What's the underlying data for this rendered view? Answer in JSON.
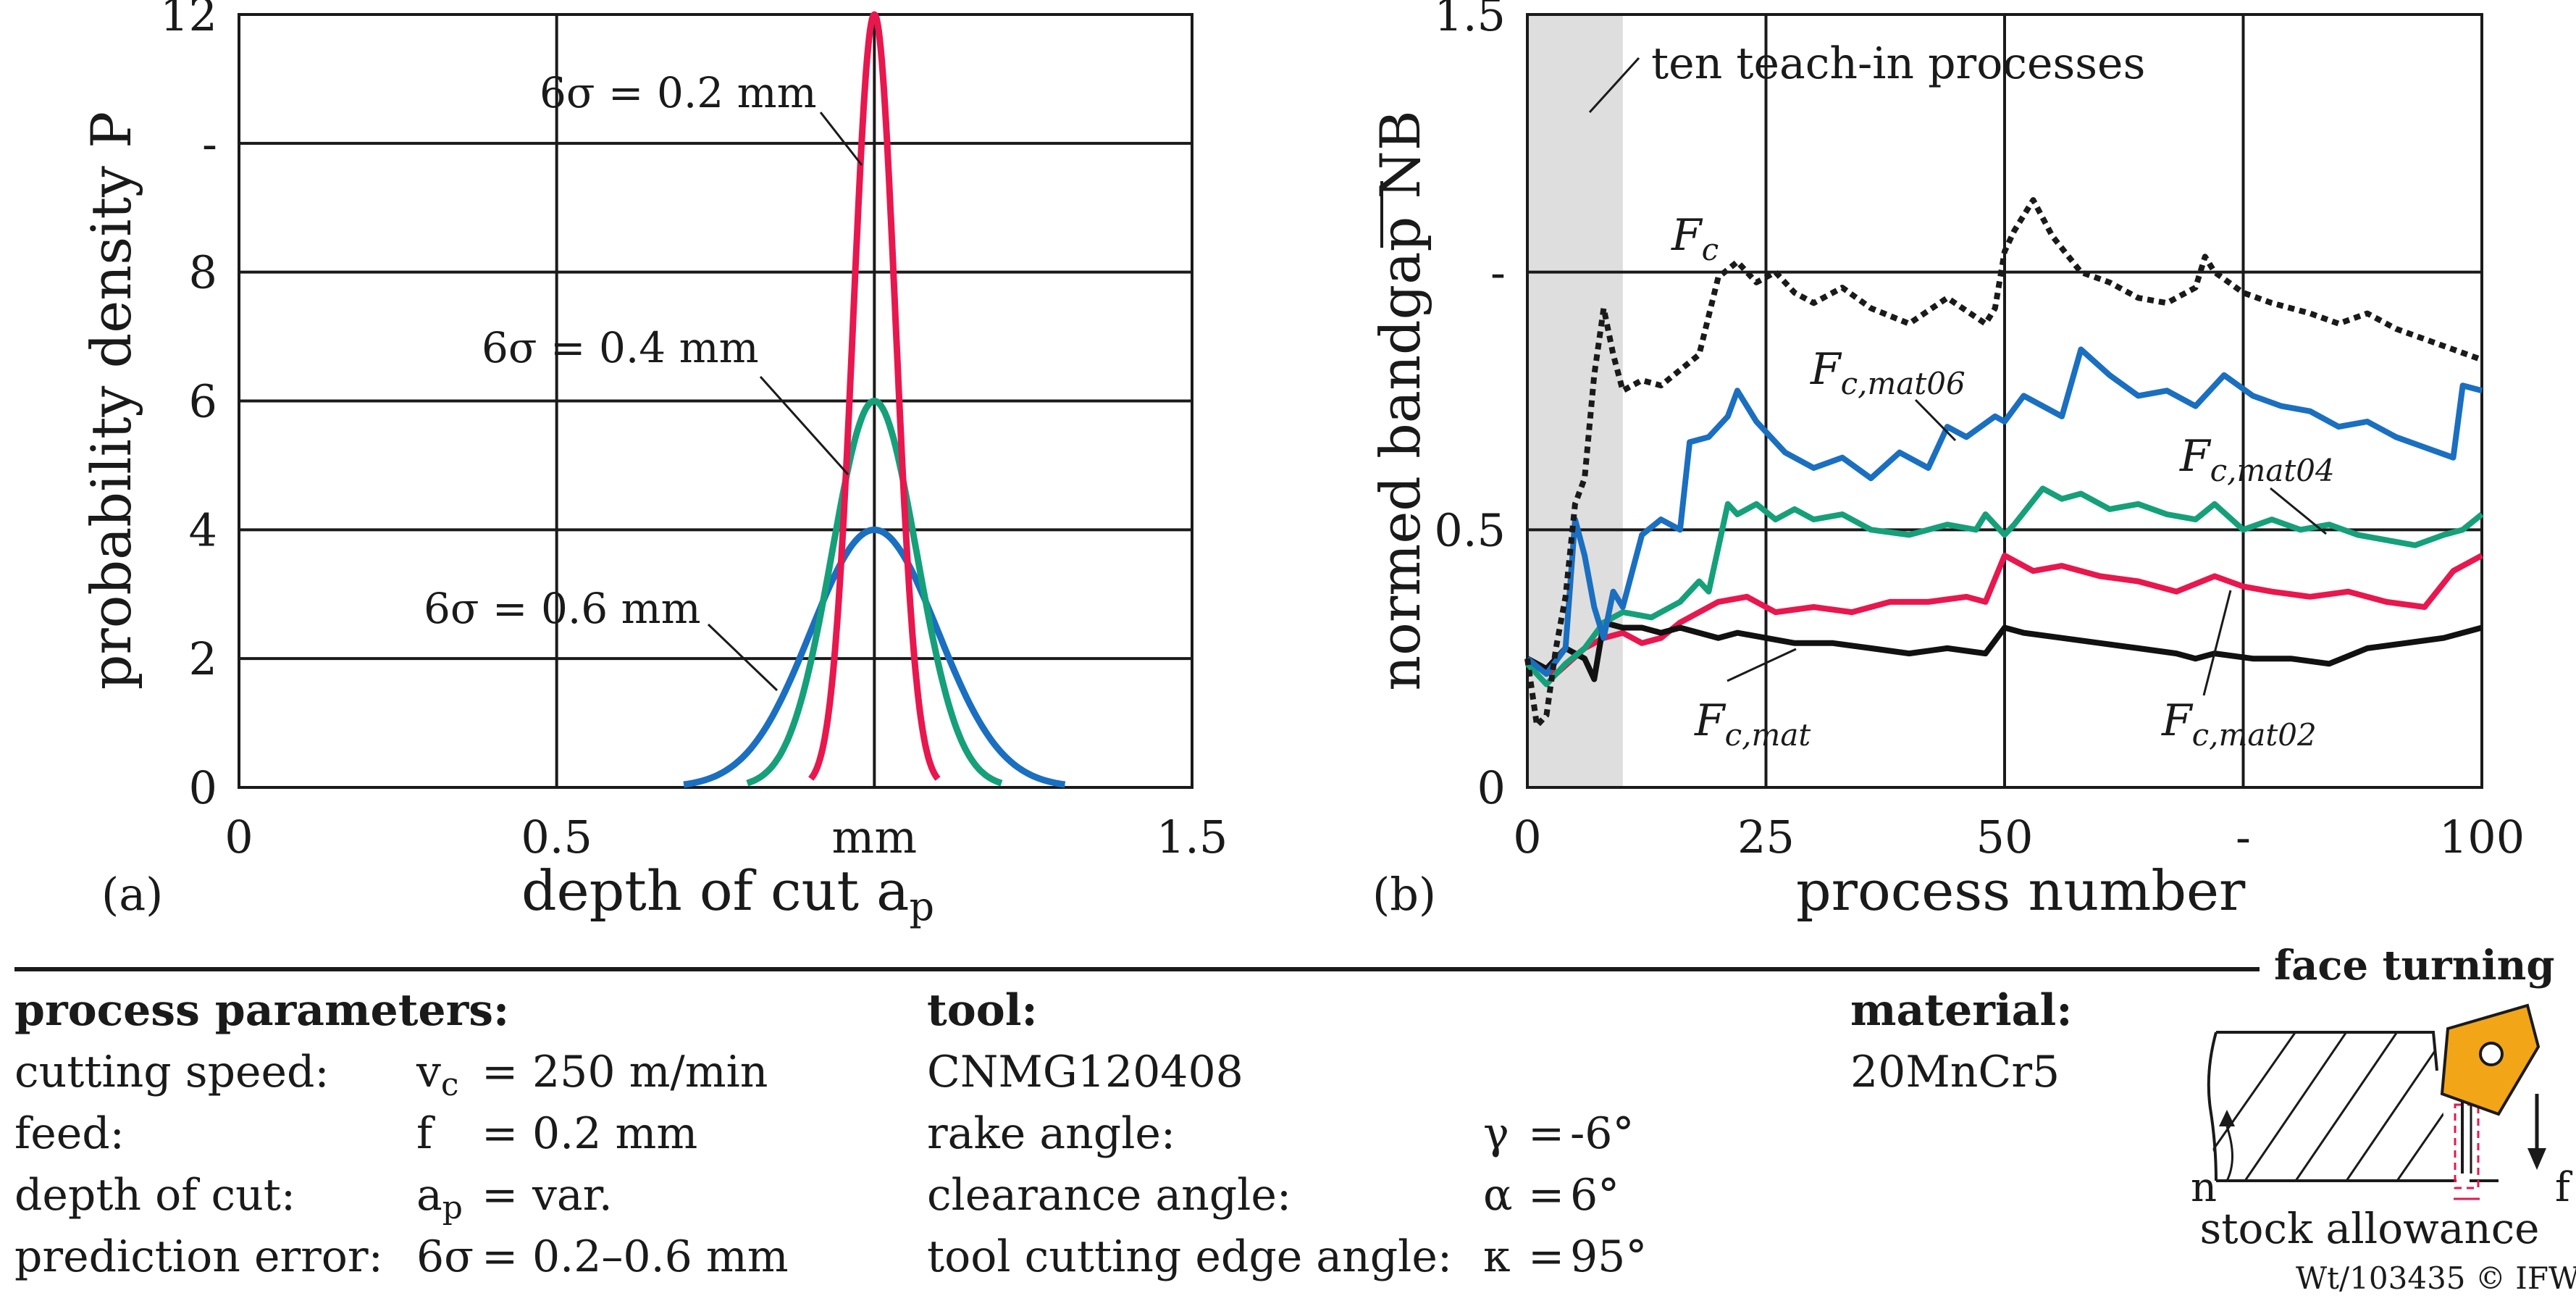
{
  "chart_data": [
    {
      "type": "line",
      "panel_label": "(a)",
      "xlabel": "depth of cut a",
      "xlabel_sub": "p",
      "ylabel": "probability density P",
      "xlim": [
        0,
        1.5
      ],
      "ylim": [
        0,
        12
      ],
      "x_ticks": [
        {
          "value": 0,
          "label": "0"
        },
        {
          "value": 0.5,
          "label": "0.5"
        },
        {
          "value": 1,
          "label": "mm"
        },
        {
          "value": 1.5,
          "label": "1.5"
        }
      ],
      "y_ticks": [
        {
          "value": 0,
          "label": "0"
        },
        {
          "value": 2,
          "label": "2"
        },
        {
          "value": 4,
          "label": "4"
        },
        {
          "value": 6,
          "label": "6"
        },
        {
          "value": 8,
          "label": "8"
        },
        {
          "value": 10,
          "label": "-"
        },
        {
          "value": 12,
          "label": "12"
        }
      ],
      "grid": true,
      "mean": 1.0,
      "series": [
        {
          "name": "6σ = 0.2 mm",
          "sigma": 0.0333,
          "peak": 12,
          "color": "#e8174e"
        },
        {
          "name": "6σ = 0.4 mm",
          "sigma": 0.0667,
          "peak": 6,
          "color": "#16a07a"
        },
        {
          "name": "6σ = 0.6 mm",
          "sigma": 0.1,
          "peak": 4,
          "color": "#1a6fc0"
        }
      ]
    },
    {
      "type": "line",
      "panel_label": "(b)",
      "xlabel": "process number",
      "ylabel": "normed bandgap NB",
      "xlim": [
        0,
        100
      ],
      "ylim": [
        0,
        1.5
      ],
      "x_ticks": [
        {
          "value": 0,
          "label": "0"
        },
        {
          "value": 25,
          "label": "25"
        },
        {
          "value": 50,
          "label": "50"
        },
        {
          "value": 75,
          "label": "-"
        },
        {
          "value": 100,
          "label": "100"
        }
      ],
      "y_ticks": [
        {
          "value": 0,
          "label": "0"
        },
        {
          "value": 0.5,
          "label": "0.5"
        },
        {
          "value": 1.0,
          "label": "-"
        },
        {
          "value": 1.5,
          "label": "1.5"
        }
      ],
      "grid": true,
      "shaded_region": {
        "x": [
          0,
          10
        ],
        "label": "ten teach-in processes"
      },
      "series": [
        {
          "name": "F",
          "sub": "c",
          "style": "dotted",
          "color": "#1a1a1a",
          "x": [
            0,
            1,
            2,
            3,
            4,
            5,
            6,
            7,
            8,
            9,
            10,
            12,
            14,
            16,
            18,
            20,
            22,
            24,
            26,
            28,
            30,
            33,
            36,
            40,
            44,
            48,
            49,
            50,
            51,
            53,
            55,
            58,
            61,
            64,
            67,
            70,
            71,
            72,
            75,
            78,
            82,
            85,
            88,
            91,
            94,
            97,
            100
          ],
          "y": [
            0.25,
            0.12,
            0.14,
            0.27,
            0.37,
            0.55,
            0.6,
            0.8,
            0.93,
            0.84,
            0.77,
            0.79,
            0.78,
            0.81,
            0.84,
            0.99,
            1.02,
            0.98,
            1.0,
            0.96,
            0.94,
            0.97,
            0.93,
            0.9,
            0.95,
            0.9,
            0.93,
            1.04,
            1.08,
            1.14,
            1.07,
            1.0,
            0.98,
            0.95,
            0.94,
            0.97,
            1.03,
            1.0,
            0.96,
            0.94,
            0.92,
            0.9,
            0.92,
            0.89,
            0.87,
            0.85,
            0.83
          ]
        },
        {
          "name": "F",
          "sub": "c,mat06",
          "style": "solid",
          "color": "#1a6fc0",
          "x": [
            0,
            2,
            4,
            5,
            6,
            7,
            8,
            9,
            10,
            12,
            14,
            16,
            17,
            19,
            21,
            22,
            24,
            27,
            30,
            33,
            36,
            39,
            42,
            44,
            46,
            49,
            50,
            52,
            56,
            58,
            61,
            64,
            67,
            70,
            73,
            76,
            79,
            82,
            85,
            88,
            91,
            94,
            97,
            98,
            100
          ],
          "y": [
            0.25,
            0.22,
            0.27,
            0.52,
            0.45,
            0.35,
            0.29,
            0.38,
            0.35,
            0.49,
            0.52,
            0.5,
            0.67,
            0.68,
            0.72,
            0.77,
            0.71,
            0.65,
            0.62,
            0.64,
            0.6,
            0.65,
            0.62,
            0.7,
            0.68,
            0.72,
            0.71,
            0.76,
            0.72,
            0.85,
            0.8,
            0.76,
            0.77,
            0.74,
            0.8,
            0.76,
            0.74,
            0.73,
            0.7,
            0.71,
            0.68,
            0.66,
            0.64,
            0.78,
            0.77
          ]
        },
        {
          "name": "F",
          "sub": "c,mat04",
          "style": "solid",
          "color": "#16a07a",
          "x": [
            0,
            2,
            4,
            6,
            8,
            10,
            13,
            16,
            18,
            19,
            21,
            22,
            24,
            26,
            28,
            30,
            33,
            36,
            40,
            44,
            47,
            48,
            50,
            51,
            54,
            56,
            58,
            61,
            64,
            67,
            70,
            72,
            75,
            78,
            81,
            84,
            87,
            90,
            93,
            96,
            98,
            100
          ],
          "y": [
            0.24,
            0.2,
            0.24,
            0.27,
            0.32,
            0.34,
            0.33,
            0.36,
            0.4,
            0.38,
            0.55,
            0.53,
            0.55,
            0.52,
            0.54,
            0.52,
            0.53,
            0.5,
            0.49,
            0.51,
            0.5,
            0.53,
            0.49,
            0.51,
            0.58,
            0.56,
            0.57,
            0.54,
            0.55,
            0.53,
            0.52,
            0.55,
            0.5,
            0.52,
            0.5,
            0.51,
            0.49,
            0.48,
            0.47,
            0.49,
            0.5,
            0.53
          ]
        },
        {
          "name": "F",
          "sub": "c,mat02",
          "style": "solid",
          "color": "#e8174e",
          "x": [
            0,
            3,
            6,
            8,
            10,
            12,
            14,
            16,
            18,
            20,
            23,
            26,
            30,
            34,
            38,
            42,
            46,
            48,
            50,
            53,
            56,
            60,
            64,
            68,
            72,
            75,
            78,
            82,
            86,
            90,
            94,
            97,
            100
          ],
          "y": [
            0.25,
            0.22,
            0.27,
            0.29,
            0.3,
            0.28,
            0.29,
            0.32,
            0.34,
            0.36,
            0.37,
            0.34,
            0.35,
            0.34,
            0.36,
            0.36,
            0.37,
            0.36,
            0.45,
            0.42,
            0.43,
            0.41,
            0.4,
            0.38,
            0.41,
            0.39,
            0.38,
            0.37,
            0.38,
            0.36,
            0.35,
            0.42,
            0.45
          ]
        },
        {
          "name": "F",
          "sub": "c,mat",
          "style": "solid",
          "color": "#111111",
          "x": [
            0,
            2,
            4,
            6,
            7,
            8,
            10,
            12,
            14,
            16,
            18,
            20,
            22,
            25,
            28,
            32,
            36,
            40,
            44,
            48,
            50,
            52,
            56,
            60,
            64,
            68,
            70,
            72,
            76,
            80,
            84,
            88,
            92,
            96,
            100
          ],
          "y": [
            0.25,
            0.23,
            0.27,
            0.25,
            0.21,
            0.32,
            0.31,
            0.31,
            0.3,
            0.31,
            0.3,
            0.29,
            0.3,
            0.29,
            0.28,
            0.28,
            0.27,
            0.26,
            0.27,
            0.26,
            0.31,
            0.3,
            0.29,
            0.28,
            0.27,
            0.26,
            0.25,
            0.26,
            0.25,
            0.25,
            0.24,
            0.27,
            0.28,
            0.29,
            0.31
          ]
        }
      ]
    }
  ],
  "info": {
    "section_title": "face turning",
    "process_heading": "process parameters:",
    "process_rows": [
      {
        "label": "cutting speed:",
        "sym": "v",
        "sym_sub": "c",
        "eq": "=",
        "value": "250 m/min"
      },
      {
        "label": "feed:",
        "sym": "f",
        "sym_sub": "",
        "eq": "=",
        "value": "0.2 mm"
      },
      {
        "label": "depth of cut:",
        "sym": "a",
        "sym_sub": "p",
        "eq": "=",
        "value": "var."
      },
      {
        "label": "prediction error:",
        "sym": "6σ",
        "sym_sub": "",
        "eq": "=",
        "value": "0.2–0.6 mm"
      }
    ],
    "tool_heading": "tool:",
    "tool_name": "CNMG120408",
    "tool_rows": [
      {
        "label": "rake angle:",
        "sym": "γ",
        "eq": "=",
        "value": "-6°"
      },
      {
        "label": "clearance angle:",
        "sym": "α",
        "eq": "=",
        "value": "6°"
      },
      {
        "label": "tool cutting edge angle:",
        "sym": "κ",
        "eq": "=",
        "value": "95°"
      }
    ],
    "material_heading": "material:",
    "material_name": "20MnCr5",
    "sketch": {
      "n_label": "n",
      "f_label": "f",
      "caption": "stock allowance",
      "tool_color": "#f2a516"
    },
    "copyright": "Wt/103435 © IFW"
  }
}
